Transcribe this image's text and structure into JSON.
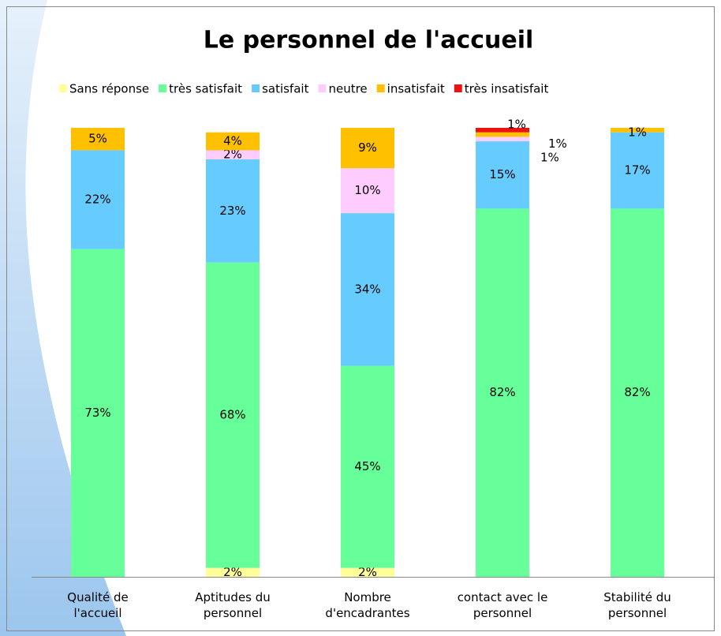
{
  "chart_data": {
    "type": "stacked_bar",
    "title": "Le personnel de l'accueil",
    "categories": [
      "Qualité de\nl'accueil",
      "Aptitudes du\npersonnel",
      "Nombre\nd'encadrantes",
      "contact avec le\npersonnel",
      "Stabilité du\npersonnel"
    ],
    "series": [
      {
        "name": "Sans réponse",
        "color": "#ffff99",
        "values": [
          null,
          2,
          2,
          null,
          null
        ],
        "value_labels": [
          null,
          "2%",
          "2%",
          null,
          null
        ]
      },
      {
        "name": "très satisfait",
        "color": "#66ff99",
        "values": [
          73,
          68,
          45,
          82,
          82
        ],
        "value_labels": [
          "73%",
          "68%",
          "45%",
          "82%",
          "82%"
        ]
      },
      {
        "name": "satisfait",
        "color": "#66ccff",
        "values": [
          22,
          23,
          34,
          15,
          17
        ],
        "value_labels": [
          "22%",
          "23%",
          "34%",
          "15%",
          "17%"
        ]
      },
      {
        "name": "neutre",
        "color": "#ffccff",
        "values": [
          null,
          2,
          10,
          1,
          null
        ],
        "value_labels": [
          null,
          "2%",
          "10%",
          "1%",
          null
        ]
      },
      {
        "name": "insatisfait",
        "color": "#ffc000",
        "values": [
          5,
          4,
          9,
          1,
          1
        ],
        "value_labels": [
          "5%",
          "4%",
          "9%",
          "1%",
          "1%"
        ]
      },
      {
        "name": "très insatisfait",
        "color": "#ee1111",
        "values": [
          null,
          null,
          null,
          1,
          null
        ],
        "value_labels": [
          null,
          null,
          null,
          "1%",
          null
        ]
      }
    ],
    "ylim": [
      0,
      100
    ]
  }
}
